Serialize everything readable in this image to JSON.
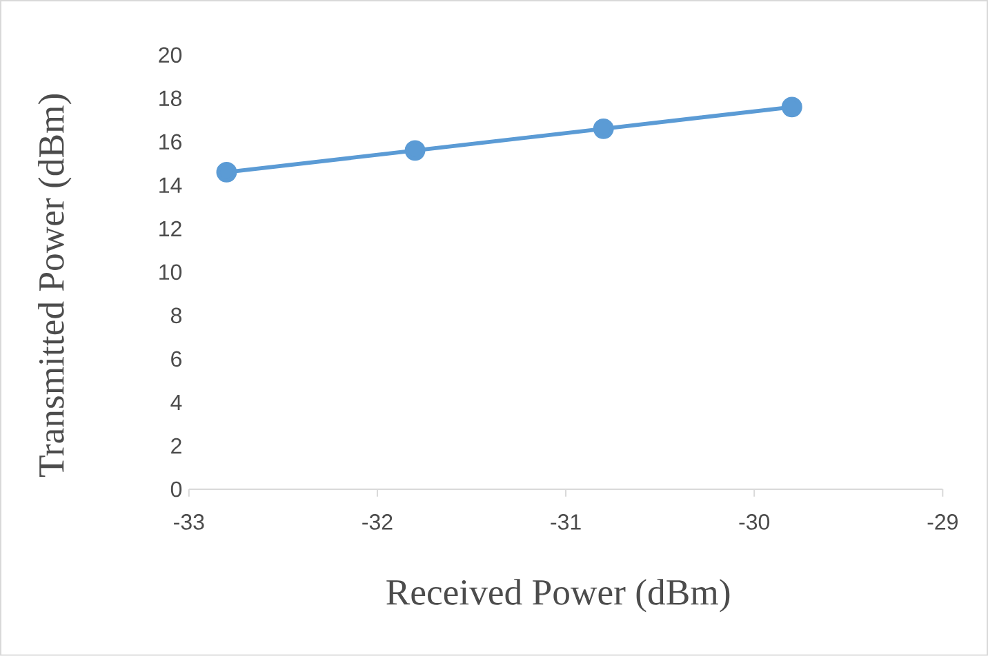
{
  "chart_data": {
    "type": "line",
    "xlabel": "Received Power (dBm)",
    "ylabel": "Transmitted Power (dBm)",
    "x": [
      -32.8,
      -31.8,
      -30.8,
      -29.8
    ],
    "series": [
      {
        "color": "#5b9bd5",
        "values": [
          14.6,
          15.6,
          16.6,
          17.6
        ]
      }
    ],
    "xlim": [
      -33,
      -29
    ],
    "xticks": [
      -33,
      -32,
      -31,
      -30,
      -29
    ],
    "ylim": [
      0,
      20
    ],
    "yticks": [
      0,
      2,
      4,
      6,
      8,
      10,
      12,
      14,
      16,
      18,
      20
    ],
    "marker": "circle",
    "line_style": "solid",
    "grid": false
  }
}
